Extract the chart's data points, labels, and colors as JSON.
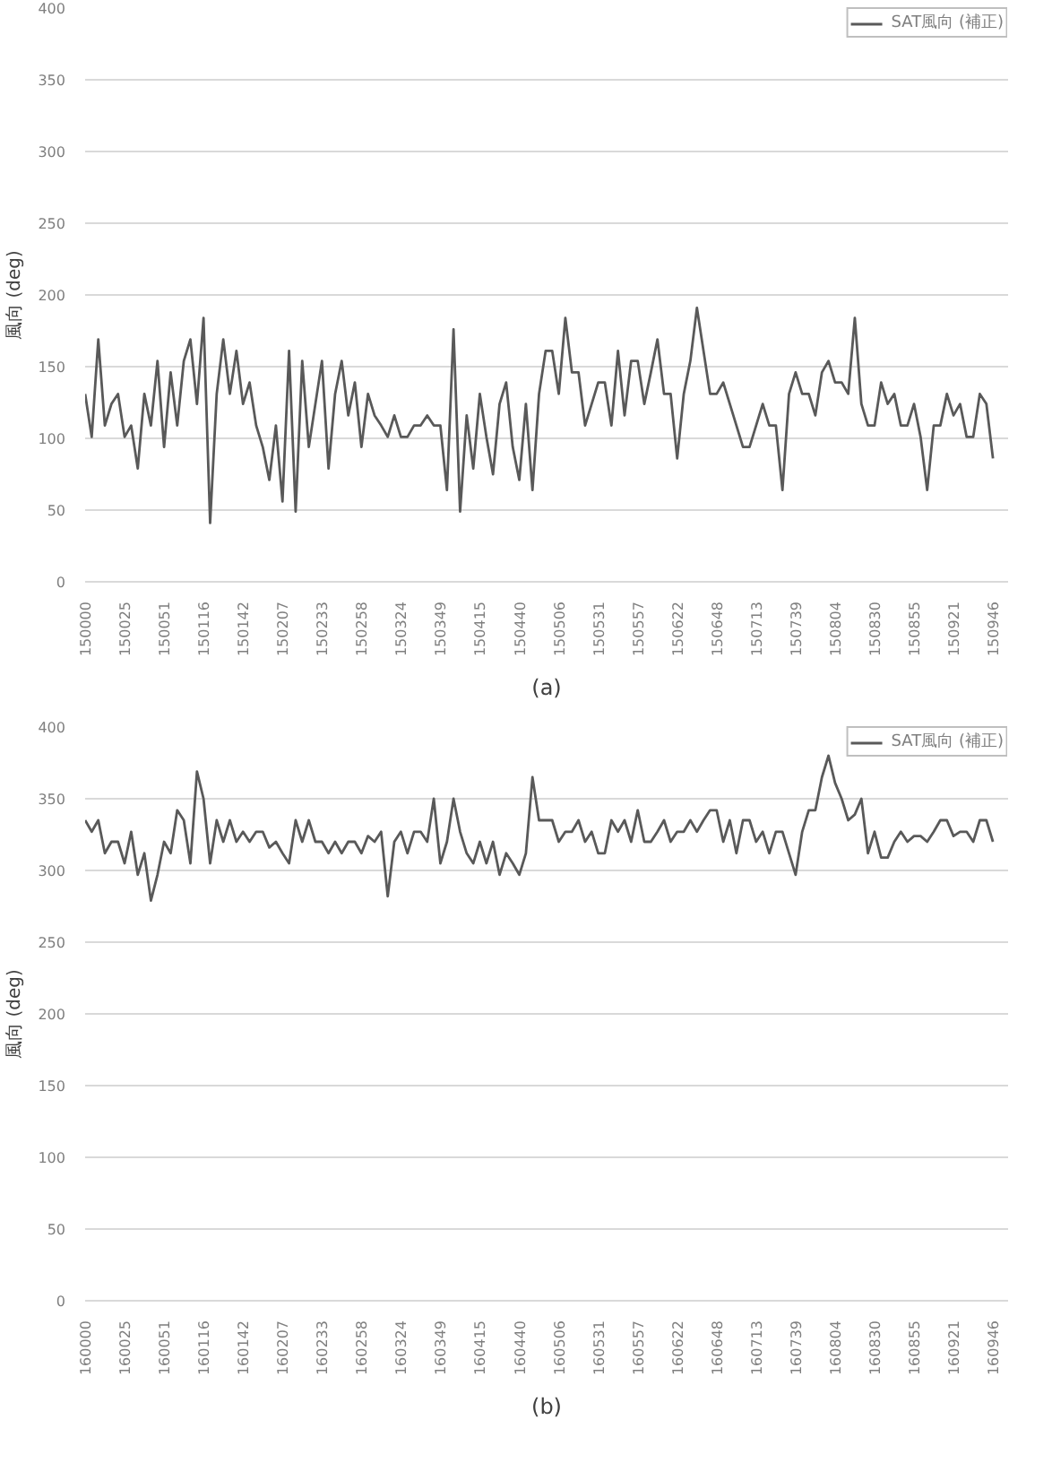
{
  "chart_data": [
    {
      "type": "line",
      "ylabel": "風向 (deg)",
      "annotations": [
        "(a)"
      ],
      "categories": [
        "150000",
        null,
        null,
        null,
        null,
        null,
        "150025",
        null,
        null,
        null,
        null,
        null,
        "150051",
        null,
        null,
        null,
        null,
        null,
        "150116",
        null,
        null,
        null,
        null,
        null,
        "150142",
        null,
        null,
        null,
        null,
        null,
        "150207",
        null,
        null,
        null,
        null,
        null,
        "150233",
        null,
        null,
        null,
        null,
        null,
        "150258",
        null,
        null,
        null,
        null,
        null,
        "150324",
        null,
        null,
        null,
        null,
        null,
        "150349",
        null,
        null,
        null,
        null,
        null,
        "150415",
        null,
        null,
        null,
        null,
        null,
        "150440",
        null,
        null,
        null,
        null,
        null,
        "150506",
        null,
        null,
        null,
        null,
        null,
        "150531",
        null,
        null,
        null,
        null,
        null,
        "150557",
        null,
        null,
        null,
        null,
        null,
        "150622",
        null,
        null,
        null,
        null,
        null,
        "150648",
        null,
        null,
        null,
        null,
        null,
        "150713",
        null,
        null,
        null,
        null,
        null,
        "150739",
        null,
        null,
        null,
        null,
        null,
        "150804",
        null,
        null,
        null,
        null,
        null,
        "150830",
        null,
        null,
        null,
        null,
        null,
        "150855",
        null,
        null,
        null,
        null,
        null,
        "150921",
        null,
        null,
        null,
        null,
        null,
        "150946"
      ],
      "ylim": [
        0,
        400
      ],
      "yticks": [
        0,
        50,
        100,
        150,
        200,
        250,
        300,
        350,
        400
      ],
      "grid": "y",
      "legend": "top right",
      "series": [
        {
          "name": "SAT風向 (補正)",
          "color": "#595959",
          "values": [
            131,
            101,
            169,
            109,
            124,
            131,
            101,
            109,
            79,
            131,
            109,
            154,
            94,
            146,
            109,
            154,
            169,
            124,
            184,
            41,
            131,
            169,
            131,
            161,
            124,
            139,
            109,
            94,
            71,
            109,
            56,
            161,
            49,
            154,
            94,
            124,
            154,
            79,
            131,
            154,
            116,
            139,
            94,
            131,
            116,
            109,
            101,
            116,
            101,
            101,
            109,
            109,
            116,
            109,
            109,
            64,
            176,
            49,
            116,
            79,
            131,
            101,
            75,
            124,
            139,
            94,
            71,
            124,
            64,
            131,
            161,
            161,
            131,
            184,
            146,
            146,
            109,
            124,
            139,
            139,
            109,
            161,
            116,
            154,
            154,
            124,
            146,
            169,
            131,
            131,
            86,
            131,
            154,
            191,
            161,
            131,
            131,
            139,
            124,
            109,
            94,
            94,
            109,
            124,
            109,
            109,
            64,
            131,
            146,
            131,
            131,
            116,
            146,
            154,
            139,
            139,
            131,
            184,
            124,
            109,
            109,
            139,
            124,
            131,
            109,
            109,
            124,
            101,
            64,
            109,
            109,
            131,
            116,
            124,
            101,
            101,
            131,
            124,
            86
          ]
        }
      ]
    },
    {
      "type": "line",
      "ylabel": "風向 (deg)",
      "annotations": [
        "(b)"
      ],
      "categories": [
        "160000",
        null,
        null,
        null,
        null,
        null,
        "160025",
        null,
        null,
        null,
        null,
        null,
        "160051",
        null,
        null,
        null,
        null,
        null,
        "160116",
        null,
        null,
        null,
        null,
        null,
        "160142",
        null,
        null,
        null,
        null,
        null,
        "160207",
        null,
        null,
        null,
        null,
        null,
        "160233",
        null,
        null,
        null,
        null,
        null,
        "160258",
        null,
        null,
        null,
        null,
        null,
        "160324",
        null,
        null,
        null,
        null,
        null,
        "160349",
        null,
        null,
        null,
        null,
        null,
        "160415",
        null,
        null,
        null,
        null,
        null,
        "160440",
        null,
        null,
        null,
        null,
        null,
        "160506",
        null,
        null,
        null,
        null,
        null,
        "160531",
        null,
        null,
        null,
        null,
        null,
        "160557",
        null,
        null,
        null,
        null,
        null,
        "160622",
        null,
        null,
        null,
        null,
        null,
        "160648",
        null,
        null,
        null,
        null,
        null,
        "160713",
        null,
        null,
        null,
        null,
        null,
        "160739",
        null,
        null,
        null,
        null,
        null,
        "160804",
        null,
        null,
        null,
        null,
        null,
        "160830",
        null,
        null,
        null,
        null,
        null,
        "160855",
        null,
        null,
        null,
        null,
        null,
        "160921",
        null,
        null,
        null,
        null,
        null,
        "160946"
      ],
      "ylim": [
        0,
        400
      ],
      "yticks": [
        0,
        50,
        100,
        150,
        200,
        250,
        300,
        350,
        400
      ],
      "grid": "y",
      "legend": "top right",
      "series": [
        {
          "name": "SAT風向 (補正)",
          "color": "#595959",
          "values": [
            335,
            327,
            335,
            312,
            320,
            320,
            305,
            327,
            297,
            312,
            279,
            297,
            320,
            312,
            342,
            335,
            305,
            369,
            350,
            305,
            335,
            320,
            335,
            320,
            327,
            320,
            327,
            327,
            316,
            320,
            312,
            305,
            335,
            320,
            335,
            320,
            320,
            312,
            320,
            312,
            320,
            320,
            312,
            324,
            320,
            327,
            282,
            320,
            327,
            312,
            327,
            327,
            320,
            350,
            305,
            320,
            350,
            327,
            312,
            305,
            320,
            305,
            320,
            297,
            312,
            305,
            297,
            312,
            365,
            335,
            335,
            335,
            320,
            327,
            327,
            335,
            320,
            327,
            312,
            312,
            335,
            327,
            335,
            320,
            342,
            320,
            320,
            327,
            335,
            320,
            327,
            327,
            335,
            327,
            335,
            342,
            342,
            320,
            335,
            312,
            335,
            335,
            320,
            327,
            312,
            327,
            327,
            312,
            297,
            327,
            342,
            342,
            365,
            380,
            361,
            350,
            335,
            339,
            350,
            312,
            327,
            309,
            309,
            320,
            327,
            320,
            324,
            324,
            320,
            327,
            335,
            335,
            324,
            327,
            327,
            320,
            335,
            335,
            320
          ]
        }
      ]
    }
  ]
}
